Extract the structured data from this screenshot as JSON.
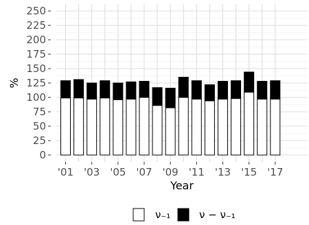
{
  "chart_data": {
    "type": "bar",
    "stacked": true,
    "categories": [
      "2001",
      "2002",
      "2003",
      "2004",
      "2005",
      "2006",
      "2007",
      "2008",
      "2009",
      "2010",
      "2011",
      "2012",
      "2013",
      "2014",
      "2015",
      "2016",
      "2017"
    ],
    "x_tick_labels": [
      "'01",
      "'03",
      "'05",
      "'07",
      "'09",
      "'11",
      "'13",
      "'15",
      "'17"
    ],
    "series": [
      {
        "name": "ν₋₁",
        "color": "#ffffff",
        "values": [
          99,
          99,
          97,
          99,
          96,
          97,
          100,
          86,
          82,
          100,
          97,
          94,
          97,
          98,
          109,
          97,
          97
        ]
      },
      {
        "name": "ν − ν₋₁",
        "color": "#000000",
        "values": [
          30,
          32,
          28,
          30,
          29,
          30,
          28,
          31,
          34,
          35,
          32,
          28,
          31,
          31,
          35,
          31,
          32
        ]
      }
    ],
    "xlabel": "Year",
    "ylabel": "%",
    "ylim": [
      0,
      250
    ],
    "y_ticks": [
      0,
      25,
      50,
      75,
      100,
      125,
      150,
      175,
      200,
      225,
      250
    ],
    "grid": true,
    "legend_position": "bottom"
  }
}
